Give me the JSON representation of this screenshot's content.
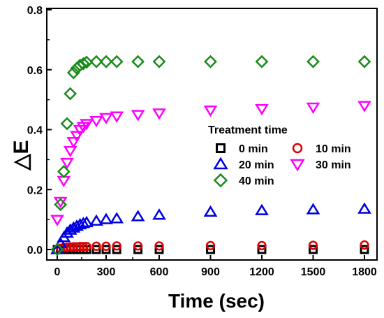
{
  "chart_data": {
    "type": "scatter",
    "title": "",
    "xlabel": "Time (sec)",
    "ylabel": "△E",
    "xlim": [
      -20,
      1840
    ],
    "ylim": [
      0,
      0.8
    ],
    "x_ticks": [
      "0",
      "300",
      "600",
      "900",
      "1200",
      "1500",
      "1800"
    ],
    "y_ticks": [
      "0.0",
      "0.2",
      "0.4",
      "0.6",
      "0.8"
    ],
    "x_scale": "piecewise: 0–600 compressed to 0–1800 axis span",
    "legend": {
      "title": "Treatment time",
      "placement": "center-right"
    },
    "colors": {
      "0 min": "#000000",
      "10 min": "#e00000",
      "20 min": "#0000e0",
      "30 min": "#ff00ff",
      "40 min": "#1a8a1a"
    },
    "series": [
      {
        "name": "0 min",
        "marker": "square",
        "x": [
          0,
          20,
          40,
          60,
          80,
          100,
          120,
          140,
          160,
          180,
          240,
          300,
          360,
          480,
          600,
          900,
          1200,
          1500,
          1800
        ],
        "y": [
          0.0,
          0.0,
          0.0,
          0.0,
          0.0,
          0.0,
          0.0,
          0.0,
          0.0,
          0.0,
          0.0,
          0.0,
          0.0,
          0.0,
          0.0,
          0.0,
          0.0,
          0.0,
          0.0
        ]
      },
      {
        "name": "10 min",
        "marker": "circle",
        "x": [
          0,
          20,
          40,
          60,
          80,
          100,
          120,
          140,
          160,
          180,
          240,
          300,
          360,
          480,
          600,
          900,
          1200,
          1500,
          1800
        ],
        "y": [
          0.0,
          0.004,
          0.006,
          0.007,
          0.008,
          0.009,
          0.009,
          0.01,
          0.01,
          0.01,
          0.011,
          0.011,
          0.012,
          0.012,
          0.012,
          0.013,
          0.013,
          0.014,
          0.015
        ]
      },
      {
        "name": "20 min",
        "marker": "triangle-up",
        "x": [
          0,
          20,
          40,
          60,
          80,
          100,
          120,
          140,
          160,
          180,
          240,
          300,
          360,
          480,
          600,
          900,
          1200,
          1500,
          1800
        ],
        "y": [
          0.0,
          0.02,
          0.04,
          0.055,
          0.065,
          0.072,
          0.078,
          0.083,
          0.087,
          0.09,
          0.095,
          0.1,
          0.103,
          0.11,
          0.115,
          0.125,
          0.13,
          0.133,
          0.135
        ]
      },
      {
        "name": "30 min",
        "marker": "triangle-down",
        "x": [
          0,
          20,
          40,
          60,
          80,
          100,
          120,
          140,
          160,
          180,
          240,
          300,
          360,
          480,
          600,
          900,
          1200,
          1500,
          1800
        ],
        "y": [
          0.1,
          0.16,
          0.23,
          0.29,
          0.33,
          0.36,
          0.38,
          0.4,
          0.41,
          0.42,
          0.43,
          0.44,
          0.445,
          0.45,
          0.455,
          0.465,
          0.47,
          0.475,
          0.48
        ]
      },
      {
        "name": "40 min",
        "marker": "diamond",
        "x": [
          0,
          20,
          40,
          60,
          80,
          100,
          120,
          140,
          160,
          180,
          240,
          300,
          360,
          480,
          600,
          900,
          1200,
          1500,
          1800
        ],
        "y": [
          0.0,
          0.15,
          0.26,
          0.42,
          0.52,
          0.59,
          0.605,
          0.615,
          0.62,
          0.625,
          0.627,
          0.627,
          0.627,
          0.627,
          0.627,
          0.627,
          0.627,
          0.627,
          0.627
        ]
      }
    ]
  }
}
